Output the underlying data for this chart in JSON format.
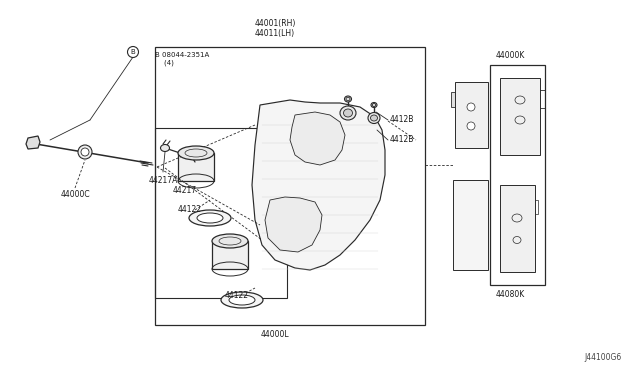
{
  "bg_color": "#ffffff",
  "fig_width": 6.4,
  "fig_height": 3.72,
  "dpi": 100,
  "lc": "#2a2a2a",
  "tc": "#1a1a1a",
  "labels": {
    "bolt_label": "B 08044-2351A\n    (4)",
    "44000C": "44000C",
    "44217A": "44217A",
    "44217": "44217",
    "44122_top": "44122",
    "44122_bot": "44122",
    "44001RH": "44001(RH)\n44011(LH)",
    "4412B_top": "4412B",
    "4412B_bot": "4412B",
    "44000L": "44000L",
    "44000K": "44000K",
    "44080K": "44080K",
    "J44100G6": "J44100G6"
  }
}
